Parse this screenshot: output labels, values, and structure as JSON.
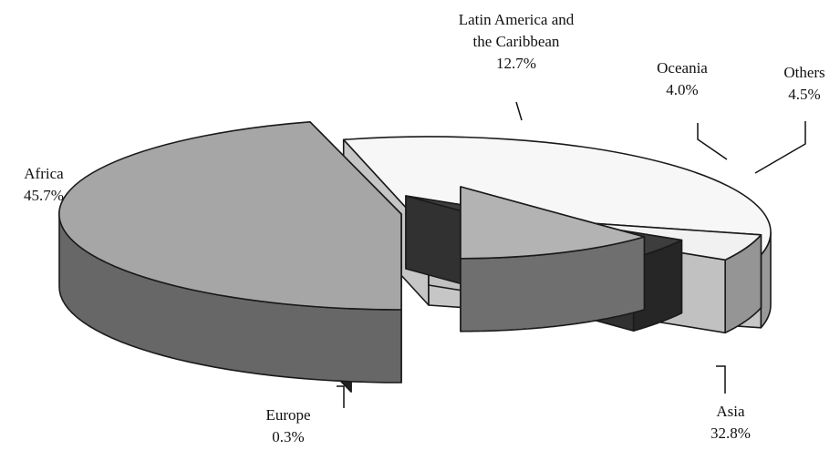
{
  "chart_data": {
    "type": "pie",
    "three_d": true,
    "exploded": true,
    "title": "",
    "legend": "none",
    "slices": [
      {
        "label_lines": [
          "Africa"
        ],
        "value_label": "45.7%",
        "value": 45.7,
        "color": "#a6a6a6"
      },
      {
        "label_lines": [
          "Europe"
        ],
        "value_label": "0.3%",
        "value": 0.3,
        "color": "#2b2b2b"
      },
      {
        "label_lines": [
          "Asia"
        ],
        "value_label": "32.8%",
        "value": 32.8,
        "color": "#f7f7f7"
      },
      {
        "label_lines": [
          "Others"
        ],
        "value_label": "4.5%",
        "value": 4.5,
        "color": "#f1f1f1"
      },
      {
        "label_lines": [
          "Oceania"
        ],
        "value_label": "4.0%",
        "value": 4.0,
        "color": "#3d3d3d"
      },
      {
        "label_lines": [
          "Latin America and",
          "the Caribbean"
        ],
        "value_label": "12.7%",
        "value": 12.7,
        "color": "#b3b3b3"
      }
    ]
  }
}
